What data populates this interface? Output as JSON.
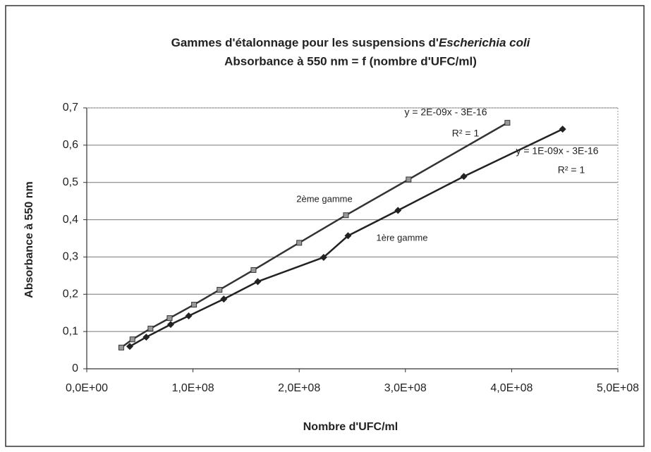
{
  "chart_data": {
    "type": "line",
    "title": [
      "Gammes d'étalonnage pour les suspensions d'",
      "Escherichia coli"
    ],
    "subtitle": "Absorbance à 550 nm = f (nombre d'UFC/ml)",
    "x_label": "Nombre d'UFC/ml",
    "y_label": "Absorbance à 550 nm",
    "xlim": [
      0,
      500000000
    ],
    "xticks": [
      {
        "value": 0,
        "label": "0,0E+00"
      },
      {
        "value": 100000000,
        "label": "1,0E+08"
      },
      {
        "value": 200000000,
        "label": "2,0E+08"
      },
      {
        "value": 300000000,
        "label": "3,0E+08"
      },
      {
        "value": 400000000,
        "label": "4,0E+08"
      },
      {
        "value": 500000000,
        "label": "5,0E+08"
      }
    ],
    "ylim": [
      0,
      0.7
    ],
    "yticks": [
      0,
      {
        "value": 0.1,
        "label": "0,1"
      },
      {
        "value": 0.2,
        "label": "0,2"
      },
      {
        "value": 0.3,
        "label": "0,3"
      },
      {
        "value": 0.4,
        "label": "0,4"
      },
      {
        "value": 0.5,
        "label": "0,5"
      },
      {
        "value": 0.6,
        "label": "0,6"
      },
      {
        "value": 0.7,
        "label": "0,7"
      }
    ],
    "grid": true,
    "series": [
      {
        "name": "2ème gamme",
        "color": "#333333",
        "marker": "square",
        "x": [
          32500000,
          43000000,
          60000000,
          78000000,
          101000000,
          125000000,
          157000000,
          200000000,
          244000000,
          303000000,
          396000000
        ],
        "values": [
          0.057,
          0.079,
          0.108,
          0.136,
          0.172,
          0.212,
          0.265,
          0.338,
          0.412,
          0.508,
          0.66
        ],
        "equation": "y = 2E-09x - 3E-16",
        "r2": "R² = 1"
      },
      {
        "name": "1ère gamme",
        "color": "#222222",
        "marker": "diamond",
        "x": [
          40500000,
          56000000,
          79000000,
          96000000,
          129000000,
          161000000,
          223000000,
          246000000,
          293000000,
          355000000,
          448000000
        ],
        "values": [
          0.06,
          0.085,
          0.119,
          0.142,
          0.187,
          0.234,
          0.299,
          0.357,
          0.425,
          0.516,
          0.643
        ],
        "equation": "y = 1E-09x - 3E-16",
        "r2": "R² = 1"
      }
    ]
  }
}
